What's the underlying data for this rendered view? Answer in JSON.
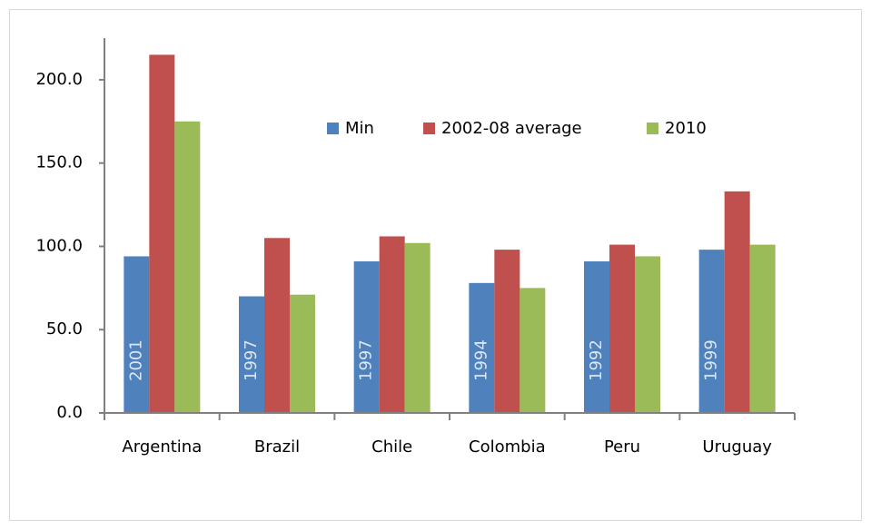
{
  "chart_data": {
    "type": "bar",
    "categories": [
      "Argentina",
      "Brazil",
      "Chile",
      "Colombia",
      "Peru",
      "Uruguay"
    ],
    "series": [
      {
        "name": "Min",
        "color": "#4f81bd",
        "values": [
          94,
          70,
          91,
          78,
          91,
          98
        ]
      },
      {
        "name": "2002-08 average",
        "color": "#c0504d",
        "values": [
          215,
          105,
          106,
          98,
          101,
          133
        ]
      },
      {
        "name": "2010",
        "color": "#9bbb59",
        "values": [
          175,
          71,
          102,
          75,
          94,
          101
        ]
      }
    ],
    "annotations": [
      "2001",
      "1997",
      "1997",
      "1994",
      "1992",
      "1999"
    ],
    "ylim": [
      0,
      225
    ],
    "yticks": [
      {
        "value": 0,
        "label": "0.0"
      },
      {
        "value": 50,
        "label": "50.0"
      },
      {
        "value": 100,
        "label": "100.0"
      },
      {
        "value": 150,
        "label": "150.0"
      },
      {
        "value": 200,
        "label": "200.0"
      }
    ],
    "legend": "top-center"
  }
}
